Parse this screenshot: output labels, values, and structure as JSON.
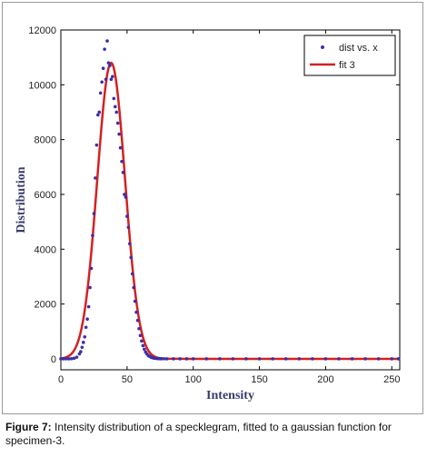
{
  "caption": {
    "label": "Figure 7:",
    "text": " Intensity distribution of a specklegram, fitted to a gaussian function for specimen-3."
  },
  "chart_data": {
    "type": "scatter",
    "xlabel": "Intensity",
    "ylabel": "Distribution",
    "xlim": [
      0,
      256
    ],
    "ylim": [
      -400,
      12000
    ],
    "x_ticks": [
      0,
      50,
      100,
      150,
      200,
      250
    ],
    "y_ticks": [
      0,
      2000,
      4000,
      6000,
      8000,
      10000,
      12000
    ],
    "grid": false,
    "legend_position": "top-right",
    "colors": {
      "points": "#3b2fa8",
      "fit": "#d42020"
    },
    "series": [
      {
        "name": "dist vs. x",
        "kind": "points",
        "x": [
          0,
          2,
          4,
          6,
          8,
          10,
          12,
          14,
          15,
          16,
          17,
          18,
          19,
          20,
          21,
          22,
          23,
          24,
          25,
          26,
          27,
          28,
          29,
          30,
          31,
          32,
          33,
          34,
          35,
          36,
          37,
          38,
          39,
          40,
          41,
          42,
          43,
          44,
          45,
          46,
          47,
          48,
          49,
          50,
          51,
          52,
          53,
          54,
          55,
          56,
          57,
          58,
          59,
          60,
          61,
          62,
          63,
          64,
          65,
          66,
          67,
          68,
          69,
          70,
          71,
          72,
          73,
          74,
          75,
          76,
          78,
          80,
          85,
          90,
          95,
          100,
          110,
          120,
          130,
          140,
          150,
          160,
          170,
          180,
          190,
          200,
          210,
          220,
          230,
          240,
          250,
          255
        ],
        "y": [
          0,
          0,
          0,
          0,
          5,
          20,
          60,
          180,
          260,
          420,
          600,
          800,
          1150,
          1450,
          1900,
          2600,
          3300,
          4500,
          5300,
          6600,
          7800,
          8900,
          9000,
          9700,
          10100,
          10600,
          11300,
          10200,
          11600,
          10800,
          10700,
          10200,
          10300,
          9500,
          9200,
          9000,
          8600,
          8200,
          7700,
          7200,
          6800,
          6000,
          5900,
          5200,
          4800,
          4200,
          3700,
          3100,
          2600,
          2100,
          1700,
          1400,
          1100,
          850,
          650,
          480,
          350,
          250,
          180,
          120,
          90,
          60,
          40,
          30,
          20,
          15,
          10,
          8,
          5,
          3,
          2,
          0,
          0,
          0,
          0,
          0,
          0,
          0,
          0,
          0,
          0,
          0,
          0,
          0,
          0,
          0,
          0,
          0,
          0,
          0,
          0,
          0
        ]
      },
      {
        "name": "fit 3",
        "kind": "line",
        "gaussian": {
          "amplitude": 10800,
          "mean": 38,
          "sigma": 10.5
        }
      }
    ]
  }
}
